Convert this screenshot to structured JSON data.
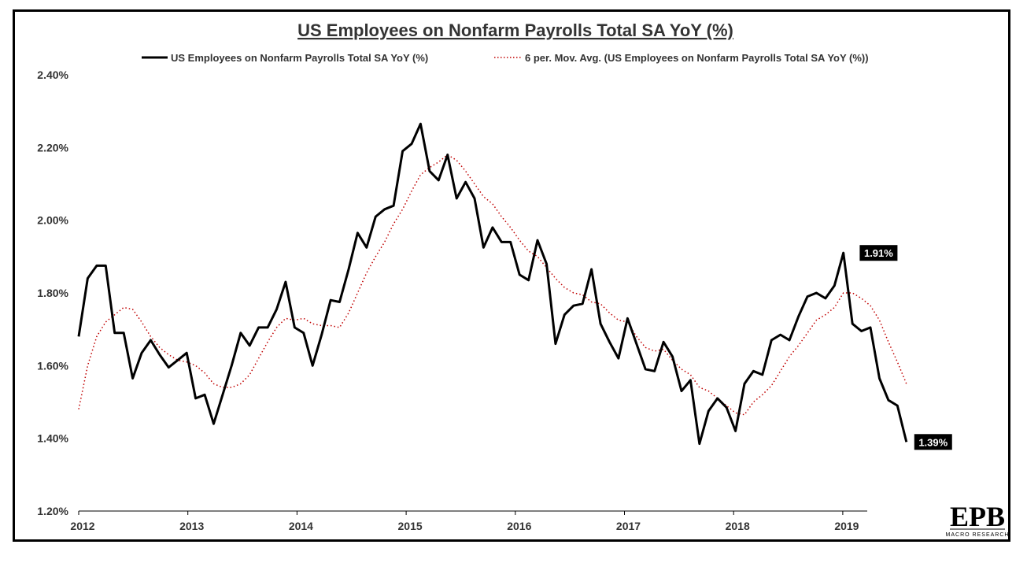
{
  "chart_data": {
    "type": "line",
    "title": "US Employees on Nonfarm Payrolls Total SA YoY (%)",
    "xlabel": "",
    "ylabel": "",
    "ylim": [
      1.2,
      2.4
    ],
    "y_ticks": [
      "1.20%",
      "1.40%",
      "1.60%",
      "1.80%",
      "2.00%",
      "2.20%",
      "2.40%"
    ],
    "y_tick_values": [
      1.2,
      1.4,
      1.6,
      1.8,
      2.0,
      2.2,
      2.4
    ],
    "x_ticks": [
      "2012",
      "2013",
      "2014",
      "2015",
      "2016",
      "2017",
      "2018",
      "2019"
    ],
    "x_start_year": 2012,
    "x_end_year": 2019.583,
    "legend_position": "top",
    "grid": false,
    "series": [
      {
        "name": "US Employees on Nonfarm Payrolls Total SA YoY (%)",
        "style": "solid",
        "color": "#000000",
        "values": [
          1.68,
          1.84,
          1.875,
          1.875,
          1.69,
          1.69,
          1.565,
          1.635,
          1.67,
          1.63,
          1.595,
          1.615,
          1.635,
          1.51,
          1.52,
          1.44,
          1.52,
          1.6,
          1.69,
          1.655,
          1.705,
          1.705,
          1.755,
          1.83,
          1.705,
          1.69,
          1.6,
          1.685,
          1.78,
          1.775,
          1.865,
          1.965,
          1.925,
          2.01,
          2.03,
          2.04,
          2.19,
          2.21,
          2.265,
          2.135,
          2.11,
          2.18,
          2.06,
          2.105,
          2.06,
          1.925,
          1.98,
          1.94,
          1.94,
          1.85,
          1.835,
          1.945,
          1.88,
          1.66,
          1.74,
          1.765,
          1.77,
          1.865,
          1.715,
          1.665,
          1.62,
          1.73,
          1.66,
          1.59,
          1.585,
          1.665,
          1.625,
          1.53,
          1.56,
          1.385,
          1.475,
          1.51,
          1.485,
          1.42,
          1.55,
          1.585,
          1.575,
          1.67,
          1.685,
          1.67,
          1.735,
          1.79,
          1.8,
          1.785,
          1.82,
          1.91,
          1.715,
          1.695,
          1.705,
          1.565,
          1.505,
          1.49,
          1.39
        ]
      },
      {
        "name": "6 per. Mov. Avg. (US Employees on Nonfarm Payrolls Total SA YoY (%))",
        "style": "dotted",
        "color": "#c00000",
        "values": [
          1.48,
          1.6,
          1.68,
          1.72,
          1.74,
          1.76,
          1.755,
          1.72,
          1.68,
          1.65,
          1.63,
          1.615,
          1.61,
          1.6,
          1.58,
          1.55,
          1.54,
          1.54,
          1.55,
          1.575,
          1.62,
          1.665,
          1.705,
          1.73,
          1.725,
          1.73,
          1.715,
          1.71,
          1.71,
          1.705,
          1.745,
          1.8,
          1.855,
          1.9,
          1.94,
          1.99,
          2.03,
          2.08,
          2.125,
          2.145,
          2.16,
          2.18,
          2.165,
          2.135,
          2.1,
          2.065,
          2.045,
          2.01,
          1.98,
          1.945,
          1.915,
          1.9,
          1.87,
          1.84,
          1.815,
          1.8,
          1.795,
          1.775,
          1.77,
          1.745,
          1.725,
          1.72,
          1.68,
          1.65,
          1.64,
          1.645,
          1.615,
          1.59,
          1.575,
          1.54,
          1.53,
          1.51,
          1.49,
          1.47,
          1.465,
          1.5,
          1.52,
          1.545,
          1.585,
          1.625,
          1.655,
          1.69,
          1.725,
          1.74,
          1.76,
          1.8,
          1.8,
          1.785,
          1.765,
          1.725,
          1.665,
          1.61,
          1.55
        ]
      }
    ],
    "annotations": [
      {
        "label": "1.91%",
        "x": 2019.083,
        "y": 1.91
      },
      {
        "label": "1.39%",
        "x": 2019.583,
        "y": 1.39
      }
    ]
  },
  "logo": {
    "main": "EPB",
    "sub": "MACRO RESEARCH"
  }
}
